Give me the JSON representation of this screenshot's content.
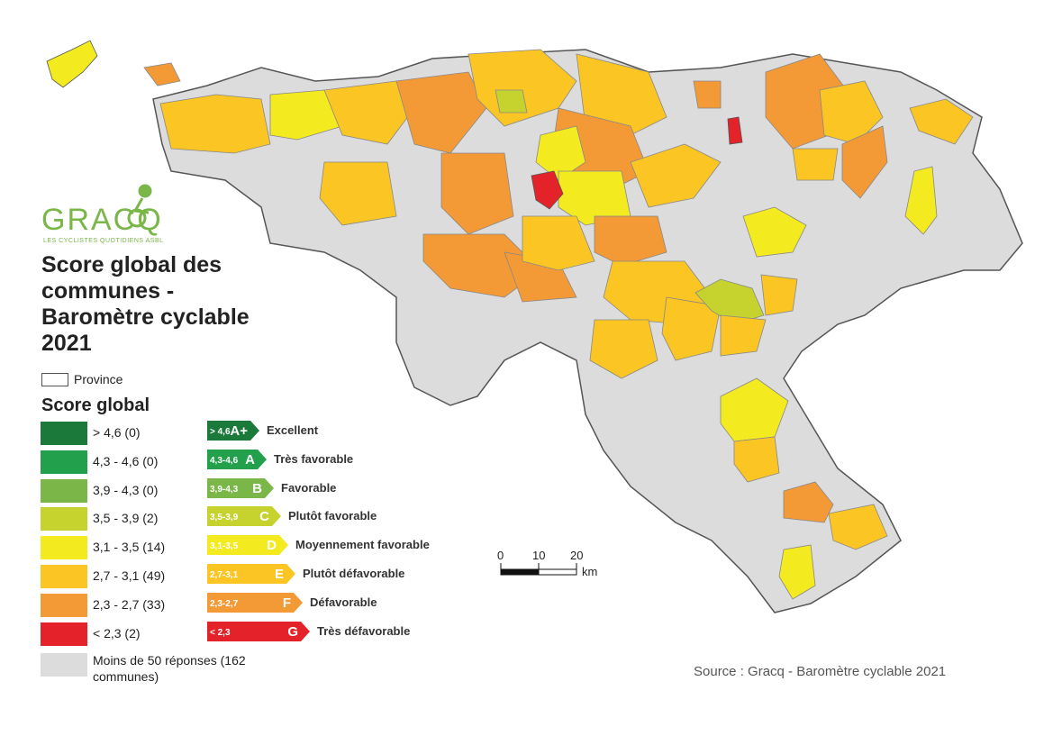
{
  "logo": {
    "name": "GRACQ",
    "tagline": "LES CYCLISTES QUOTIDIENS ASBL"
  },
  "title": "Score global des communes  - Baromètre cyclable 2021",
  "province": "Province",
  "legend": {
    "title": "Score global",
    "items": [
      {
        "label": "> 4,6 (0)",
        "color": "#1b7a3a",
        "range": "> 4,6",
        "grade": "A+",
        "description": "Excellent"
      },
      {
        "label": "4,3 - 4,6 (0)",
        "color": "#22a04b",
        "range": "4,3-4,6",
        "grade": "A",
        "description": "Très favorable"
      },
      {
        "label": "3,9 - 4,3 (0)",
        "color": "#7ab648",
        "range": "3,9-4,3",
        "grade": "B",
        "description": "Favorable"
      },
      {
        "label": "3,5 - 3,9 (2)",
        "color": "#c6d32f",
        "range": "3,5-3,9",
        "grade": "C",
        "description": "Plutôt favorable"
      },
      {
        "label": "3,1 - 3,5 (14)",
        "color": "#f3ea1f",
        "range": "3,1-3,5",
        "grade": "D",
        "description": "Moyennement favorable"
      },
      {
        "label": "2,7 - 3,1 (49)",
        "color": "#fbc523",
        "range": "2,7-3,1",
        "grade": "E",
        "description": "Plutôt défavorable"
      },
      {
        "label": "2,3 - 2,7 (33)",
        "color": "#f39a37",
        "range": "2,3-2,7",
        "grade": "F",
        "description": "Défavorable"
      },
      {
        "label": "< 2,3 (2)",
        "color": "#e3222a",
        "range": "< 2,3",
        "grade": "G",
        "description": "Très défavorable"
      }
    ],
    "no_data": {
      "label": "Moins de 50 réponses (162 communes)",
      "color": "#dcdcdc"
    }
  },
  "scale": {
    "ticks": [
      "0",
      "10",
      "20"
    ],
    "unit": "km"
  },
  "source": "Source : Gracq - Baromètre cyclable 2021"
}
